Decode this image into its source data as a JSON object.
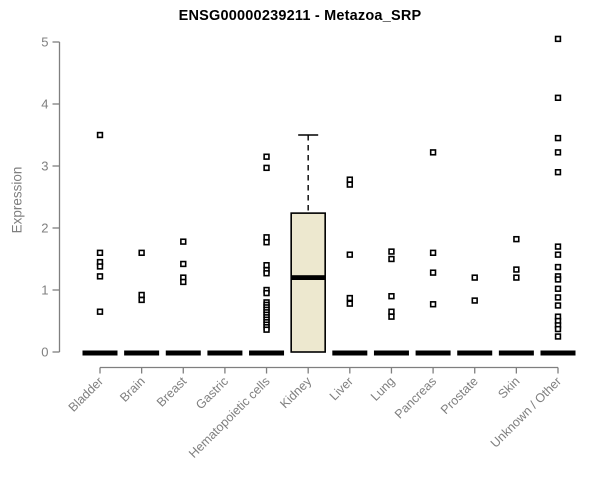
{
  "chart_data": {
    "type": "boxplot",
    "title": "ENSG00000239211 - Metazoa_SRP",
    "ylabel": "Expression",
    "xlabel": "",
    "ylim": [
      0,
      5
    ],
    "yticks": [
      0,
      1,
      2,
      3,
      4,
      5
    ],
    "grid": false,
    "legend": "none",
    "marker": "open-square",
    "categories": [
      "Bladder",
      "Brain",
      "Breast",
      "Gastric",
      "Hematopoietic cells",
      "Kidney",
      "Liver",
      "Lung",
      "Pancreas",
      "Prostate",
      "Skin",
      "Unknown / Other"
    ],
    "boxes": [
      {
        "category": "Bladder",
        "q1": 0,
        "median": 0,
        "q3": 0,
        "whisker_low": 0,
        "whisker_high": 0
      },
      {
        "category": "Brain",
        "q1": 0,
        "median": 0,
        "q3": 0,
        "whisker_low": 0,
        "whisker_high": 0
      },
      {
        "category": "Breast",
        "q1": 0,
        "median": 0,
        "q3": 0,
        "whisker_low": 0,
        "whisker_high": 0
      },
      {
        "category": "Gastric",
        "q1": 0,
        "median": 0,
        "q3": 0,
        "whisker_low": 0,
        "whisker_high": 0
      },
      {
        "category": "Hematopoietic cells",
        "q1": 0,
        "median": 0,
        "q3": 0,
        "whisker_low": 0,
        "whisker_high": 0
      },
      {
        "category": "Kidney",
        "q1": 0,
        "median": 1.2,
        "q3": 2.24,
        "whisker_low": 0,
        "whisker_high": 3.5
      },
      {
        "category": "Liver",
        "q1": 0,
        "median": 0,
        "q3": 0,
        "whisker_low": 0,
        "whisker_high": 0
      },
      {
        "category": "Lung",
        "q1": 0,
        "median": 0,
        "q3": 0,
        "whisker_low": 0,
        "whisker_high": 0
      },
      {
        "category": "Pancreas",
        "q1": 0,
        "median": 0,
        "q3": 0,
        "whisker_low": 0,
        "whisker_high": 0
      },
      {
        "category": "Prostate",
        "q1": 0,
        "median": 0,
        "q3": 0,
        "whisker_low": 0,
        "whisker_high": 0
      },
      {
        "category": "Skin",
        "q1": 0,
        "median": 0,
        "q3": 0,
        "whisker_low": 0,
        "whisker_high": 0
      },
      {
        "category": "Unknown / Other",
        "q1": 0,
        "median": 0,
        "q3": 0,
        "whisker_low": 0,
        "whisker_high": 0
      }
    ],
    "points": [
      {
        "category": "Bladder",
        "values": [
          3.5,
          1.6,
          1.45,
          1.38,
          1.22,
          0.65
        ]
      },
      {
        "category": "Brain",
        "values": [
          1.6,
          0.92,
          0.84
        ]
      },
      {
        "category": "Breast",
        "values": [
          1.78,
          1.42,
          1.2,
          1.13
        ]
      },
      {
        "category": "Gastric",
        "values": []
      },
      {
        "category": "Hematopoietic cells",
        "values": [
          3.15,
          2.97,
          1.85,
          1.77,
          1.4,
          1.32,
          1.27,
          1.0,
          0.95,
          0.8,
          0.76,
          0.72,
          0.68,
          0.64,
          0.6,
          0.56,
          0.52,
          0.48,
          0.44,
          0.4,
          0.36
        ]
      },
      {
        "category": "Kidney",
        "values": []
      },
      {
        "category": "Liver",
        "values": [
          2.78,
          2.7,
          1.57,
          0.87,
          0.78
        ]
      },
      {
        "category": "Lung",
        "values": [
          1.62,
          1.5,
          0.9,
          0.65,
          0.57
        ]
      },
      {
        "category": "Pancreas",
        "values": [
          3.22,
          1.6,
          1.28,
          0.77
        ]
      },
      {
        "category": "Prostate",
        "values": [
          1.2,
          0.83
        ]
      },
      {
        "category": "Skin",
        "values": [
          1.82,
          1.33,
          1.2
        ]
      },
      {
        "category": "Unknown / Other",
        "values": [
          5.05,
          4.1,
          3.45,
          3.22,
          2.9,
          1.7,
          1.57,
          1.37,
          1.22,
          1.17,
          1.02,
          0.88,
          0.75,
          0.57,
          0.5,
          0.43,
          0.37,
          0.25
        ]
      }
    ],
    "colors": {
      "box_fill": "#EDE8CF",
      "box_border": "#000000",
      "median": "#000000",
      "points": "#000000",
      "axis": "#7F7F7F",
      "tick_labels": "#7F7F7F",
      "title": "#000000",
      "background": "#FFFFFF"
    }
  }
}
